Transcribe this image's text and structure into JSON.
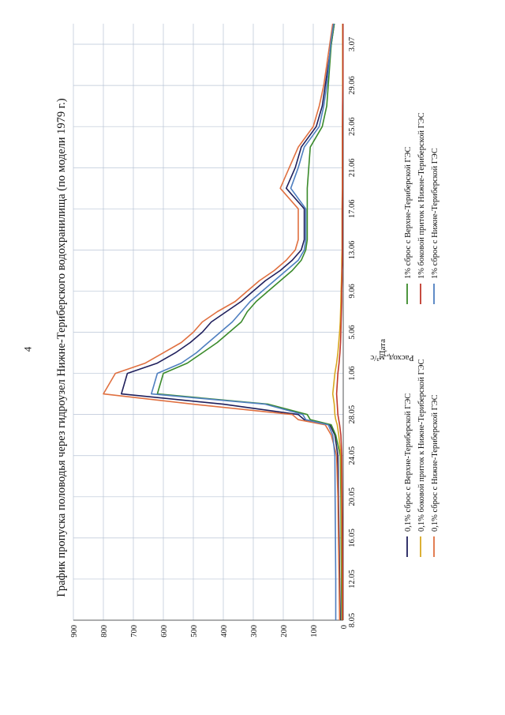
{
  "page_number": "4",
  "chart_data": {
    "type": "line",
    "title": "График пропуска половодья через гидроузел Нижне-Териберского водохранилища (по модели 1979 г.)",
    "xlabel": "Дата",
    "ylabel": "Расход, м³/с",
    "ylim": [
      0,
      900
    ],
    "y_ticks": [
      "0",
      "100",
      "200",
      "300",
      "400",
      "500",
      "600",
      "700",
      "800",
      "900"
    ],
    "x_ticks": [
      "8.05",
      "12.05",
      "16.05",
      "20.05",
      "24.05",
      "28.05",
      "1.06",
      "5.06",
      "9.06",
      "13.06",
      "17.06",
      "21.06",
      "25.06",
      "29.06",
      "3.07"
    ],
    "grid": true,
    "legend_position": "bottom",
    "x": [
      0,
      4,
      8,
      12,
      16,
      18,
      19,
      19.5,
      20,
      21,
      22,
      24,
      25,
      26,
      27,
      28,
      29,
      30,
      31,
      32,
      33,
      34,
      35,
      36,
      37,
      38,
      40,
      42,
      44,
      46,
      48,
      50,
      52,
      54,
      56,
      58
    ],
    "series": [
      {
        "name": "0,1% сброс с Верхне-Териберской ГЭС",
        "color": "#1f1f5c",
        "values": [
          10,
          12,
          14,
          16,
          18,
          28,
          45,
          130,
          150,
          400,
          740,
          720,
          620,
          560,
          510,
          470,
          440,
          390,
          340,
          300,
          260,
          210,
          170,
          140,
          130,
          130,
          130,
          190,
          160,
          140,
          90,
          70,
          60,
          50,
          40,
          30
        ]
      },
      {
        "name": "1% сброс с Верхне-Териберской ГЭС",
        "color": "#3a8a2a",
        "values": [
          5,
          6,
          7,
          8,
          10,
          25,
          40,
          110,
          120,
          250,
          620,
          600,
          520,
          470,
          420,
          380,
          340,
          320,
          290,
          250,
          210,
          170,
          140,
          125,
          120,
          120,
          120,
          120,
          115,
          110,
          70,
          55,
          50,
          45,
          40,
          30
        ]
      },
      {
        "name": "0,1% боковой приток к Нижне-Териберской ГЭС",
        "color": "#d8a820",
        "values": [
          3,
          4,
          5,
          6,
          8,
          15,
          20,
          25,
          28,
          30,
          35,
          28,
          22,
          18,
          15,
          12,
          10,
          9,
          8,
          7,
          6,
          5,
          5,
          4,
          4,
          4,
          4,
          3,
          3,
          3,
          3,
          2,
          2,
          2,
          2,
          2
        ]
      },
      {
        "name": "1% боковой приток к Нижне-Териберской ГЭС",
        "color": "#c0392b",
        "values": [
          2,
          2,
          3,
          4,
          5,
          8,
          12,
          15,
          18,
          20,
          22,
          18,
          14,
          11,
          9,
          8,
          7,
          6,
          5,
          5,
          4,
          4,
          3,
          3,
          3,
          3,
          3,
          2,
          2,
          2,
          2,
          2,
          1,
          1,
          1,
          1
        ]
      },
      {
        "name": "0,1% сброс с Нижне-Териберской ГЭС",
        "color": "#e07040",
        "values": [
          12,
          14,
          16,
          18,
          22,
          40,
          60,
          150,
          170,
          500,
          800,
          760,
          660,
          600,
          540,
          500,
          470,
          420,
          360,
          320,
          280,
          230,
          190,
          160,
          150,
          150,
          150,
          210,
          180,
          150,
          100,
          80,
          65,
          55,
          45,
          35
        ]
      },
      {
        "name": "1% сброс с Нижне-Териберской ГЭС",
        "color": "#4f7fc0",
        "values": [
          25,
          25,
          26,
          27,
          28,
          35,
          50,
          125,
          135,
          260,
          640,
          620,
          540,
          490,
          450,
          410,
          370,
          340,
          310,
          270,
          230,
          190,
          150,
          130,
          125,
          125,
          125,
          175,
          150,
          130,
          80,
          65,
          55,
          48,
          42,
          32
        ]
      }
    ]
  }
}
